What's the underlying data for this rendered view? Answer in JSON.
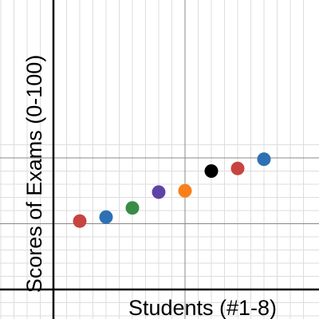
{
  "chart_data": {
    "type": "scatter",
    "xlabel": "Students (#1-8)",
    "ylabel": "Scores of Exams (0-100)",
    "grid": true,
    "series": [
      {
        "x": [
          1,
          2,
          3,
          4,
          5,
          6,
          7,
          8
        ],
        "y": [
          76,
          77.5,
          81,
          87,
          87.5,
          95,
          96,
          99.5
        ],
        "colors": [
          "#c74440",
          "#2d70b3",
          "#388c46",
          "#6042a6",
          "#fa7e19",
          "#000000",
          "#c74440",
          "#2d70b3"
        ]
      }
    ],
    "xlim": [
      -1,
      10
    ],
    "ylim": [
      50,
      100
    ]
  }
}
